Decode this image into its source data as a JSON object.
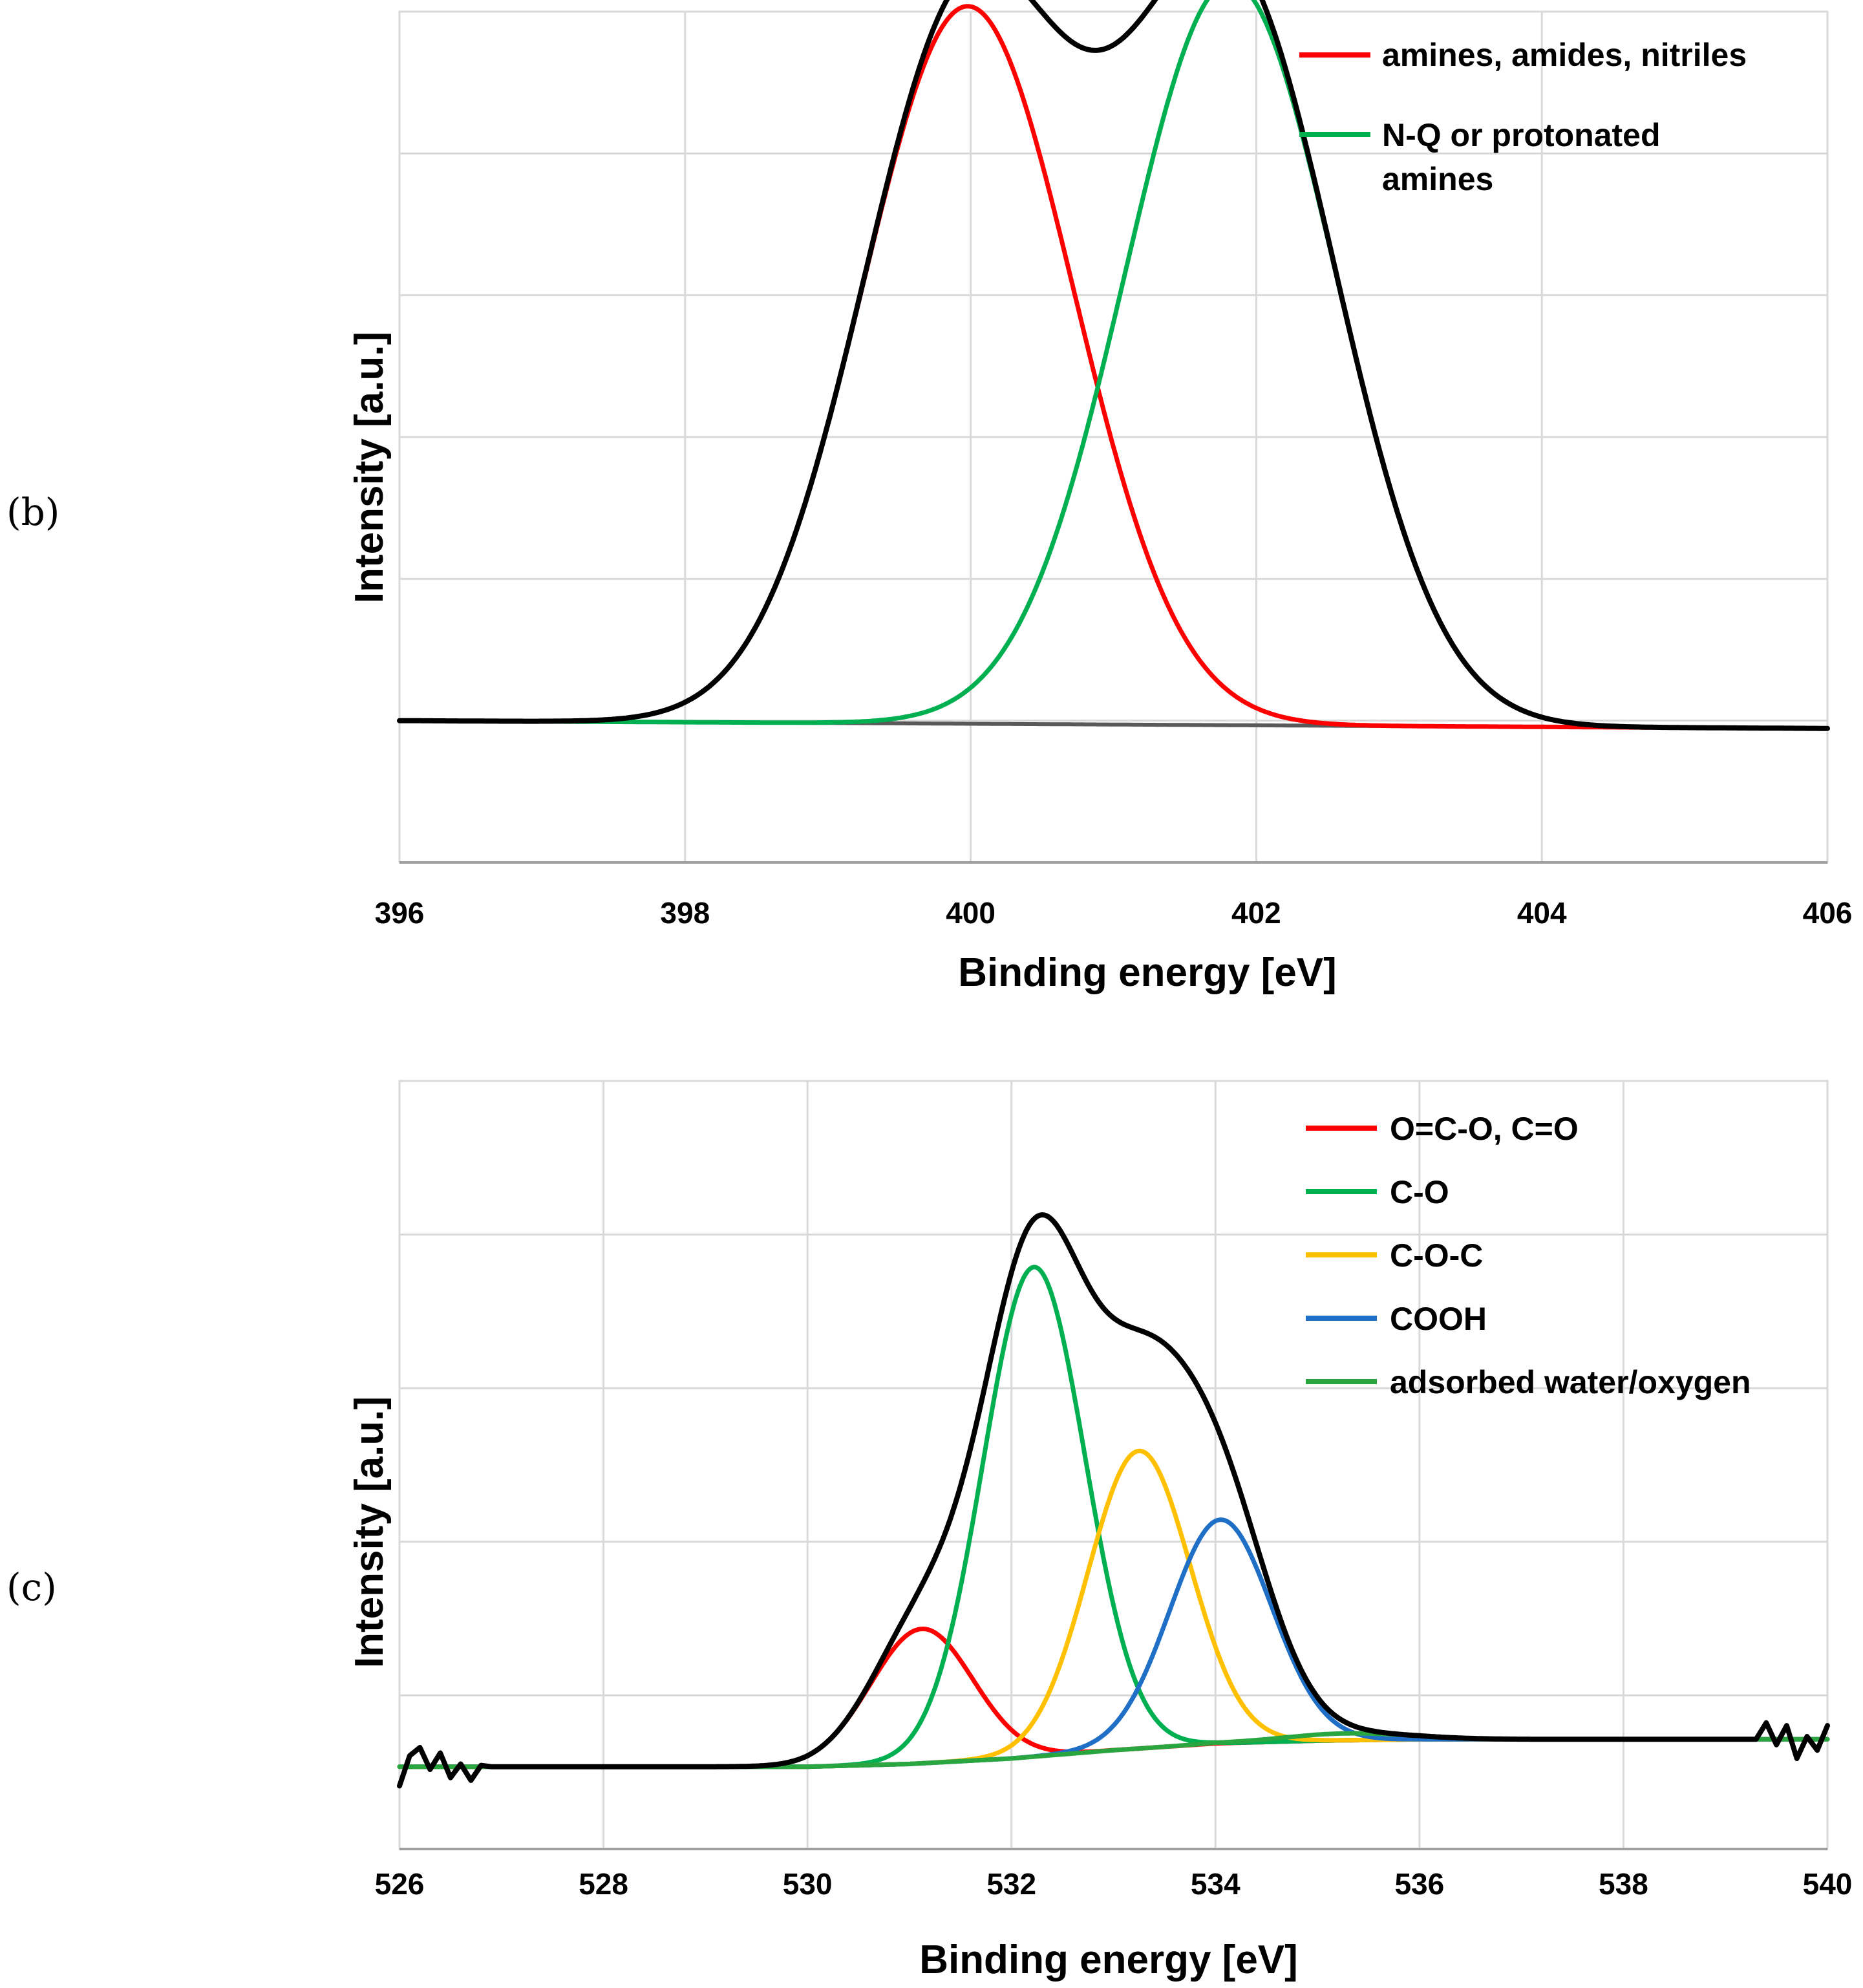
{
  "chart_data": [
    {
      "panel_label": "(b)",
      "type": "line",
      "title": "",
      "xlabel": "Binding energy [eV]",
      "ylabel": "Intensity [a.u.]",
      "xlim": [
        396,
        406
      ],
      "ylim": [
        -0.2,
        1.0
      ],
      "x_ticks": [
        "396",
        "398",
        "400",
        "402",
        "404",
        "406"
      ],
      "y_grid_count": 6,
      "legend_position": "top-right",
      "legend": [
        {
          "label": "amines, amides, nitriles",
          "color": "#ff0000"
        },
        {
          "label": "N-Q or protonated amines",
          "label_lines": [
            "N-Q or protonated",
            "amines"
          ],
          "color": "#00b050"
        }
      ],
      "background": {
        "x": [
          396,
          406
        ],
        "y": [
          0.0,
          -0.011
        ],
        "color": "#595959"
      },
      "components": [
        {
          "name": "amines, amides, nitriles",
          "center": 399.98,
          "height": 1.012,
          "sigma": 0.74,
          "color": "#ff0000"
        },
        {
          "name": "N-Q or protonated amines",
          "center": 401.82,
          "height": 1.048,
          "sigma": 0.74,
          "color": "#00b050"
        }
      ],
      "envelope_color": "#000000",
      "noise": []
    },
    {
      "panel_label": "(c)",
      "type": "line",
      "title": "",
      "xlabel": "Binding energy [eV]",
      "ylabel": "Intensity [a.u.]",
      "xlim": [
        526,
        540
      ],
      "ylim": [
        -0.6,
        5.0
      ],
      "x_ticks": [
        "526",
        "528",
        "530",
        "532",
        "534",
        "536",
        "538",
        "540"
      ],
      "y_grid_count": 5,
      "legend_position": "top-right",
      "legend": [
        {
          "label": "O=C-O, C=O",
          "color": "#ff0000"
        },
        {
          "label": "C-O",
          "color": "#00b050"
        },
        {
          "label": "C-O-C",
          "color": "#ffc000"
        },
        {
          "label": "COOH",
          "color": "#1f6fc6"
        },
        {
          "label": "adsorbed water/oxygen",
          "color": "#2aa640"
        }
      ],
      "background": {
        "x": [
          526,
          530,
          531,
          532,
          533,
          534,
          535,
          536,
          538,
          539.3
        ],
        "y": [
          0.0,
          0.0,
          0.02,
          0.06,
          0.12,
          0.17,
          0.19,
          0.2,
          0.2,
          0.2
        ],
        "color": "#1f5fa8"
      },
      "components": [
        {
          "name": "O=C-O, C=O",
          "center": 531.12,
          "height": 0.98,
          "sigma": 0.5,
          "color": "#ff0000"
        },
        {
          "name": "C-O",
          "center": 532.22,
          "height": 3.57,
          "sigma": 0.5,
          "color": "#00b050"
        },
        {
          "name": "C-O-C",
          "center": 533.25,
          "height": 2.17,
          "sigma": 0.5,
          "color": "#ffc000"
        },
        {
          "name": "COOH",
          "center": 534.05,
          "height": 1.63,
          "sigma": 0.5,
          "color": "#1f6fc6"
        },
        {
          "name": "adsorbed water/oxygen",
          "center": 535.3,
          "height": 0.05,
          "sigma": 0.6,
          "color": "#2aa640"
        }
      ],
      "envelope_color": "#000000",
      "noise": [
        {
          "x": [
            526.0,
            526.1,
            526.2,
            526.3,
            526.4,
            526.5,
            526.6,
            526.7,
            526.8,
            526.9
          ],
          "y": [
            -0.14,
            0.08,
            0.14,
            -0.02,
            0.1,
            -0.08,
            0.02,
            -0.1,
            0.01,
            0.0
          ]
        },
        {
          "x": [
            539.3,
            539.4,
            539.5,
            539.6,
            539.7,
            539.8,
            539.9,
            540.0
          ],
          "y": [
            0.2,
            0.32,
            0.16,
            0.3,
            0.06,
            0.22,
            0.12,
            0.3
          ]
        }
      ]
    }
  ]
}
